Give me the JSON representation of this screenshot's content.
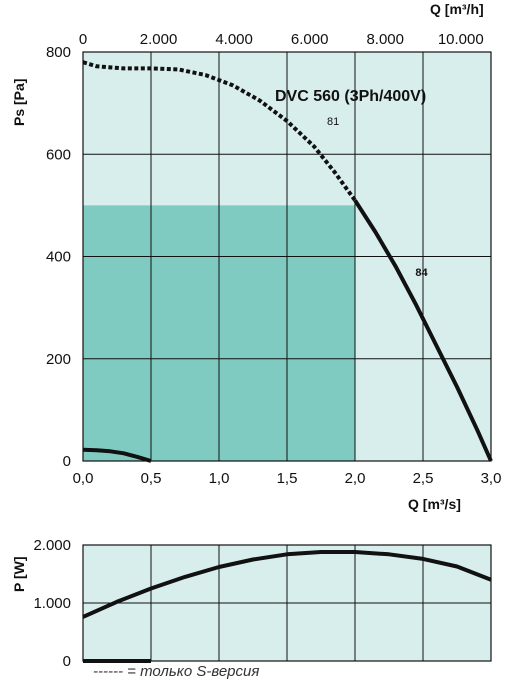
{
  "chart_data": [
    {
      "type": "line",
      "title": "DVC 560 (3Ph/400V)",
      "xlabel": "Q [m³/s]",
      "ylabel": "Ps [Pa]",
      "x2label": "Q [m³/h]",
      "xlim": [
        0,
        3
      ],
      "ylim": [
        0,
        800
      ],
      "x2lim": [
        0,
        10800
      ],
      "grid": true,
      "x_ticks": [
        0,
        0.5,
        1.0,
        1.5,
        2.0,
        2.5,
        3.0
      ],
      "x_tick_labels": [
        "0,0",
        "0,5",
        "1,0",
        "1,5",
        "2,0",
        "2,5",
        "3,0"
      ],
      "y_ticks": [
        0,
        200,
        400,
        600,
        800
      ],
      "y_tick_labels": [
        "0",
        "200",
        "400",
        "600",
        "800"
      ],
      "x2_ticks": [
        0,
        2000,
        4000,
        6000,
        8000,
        10000
      ],
      "x2_tick_labels": [
        "0",
        "2.000",
        "4.000",
        "6.000",
        "8.000",
        "10.000"
      ],
      "colors": {
        "background": "#d8eeec",
        "region": "#7fcbc2",
        "line": "#111111",
        "grid": "#111111"
      },
      "region": {
        "x": [
          0,
          2.0
        ],
        "y": [
          0,
          500
        ]
      },
      "series": [
        {
          "name": "",
          "style": "dashed",
          "x": [
            0,
            0.1,
            0.3,
            0.5,
            0.7,
            0.9,
            1.1,
            1.3,
            1.5,
            1.7,
            1.85,
            2.0
          ],
          "y": [
            780,
            772,
            768,
            768,
            766,
            755,
            735,
            705,
            665,
            615,
            565,
            510
          ]
        },
        {
          "name": "",
          "style": "solid",
          "x": [
            2.0,
            2.15,
            2.3,
            2.45,
            2.6,
            2.75,
            2.9,
            3.0
          ],
          "y": [
            510,
            448,
            380,
            305,
            225,
            145,
            60,
            0
          ]
        },
        {
          "name": "",
          "style": "solid",
          "x": [
            0,
            0.1,
            0.2,
            0.3,
            0.4,
            0.5
          ],
          "y": [
            22,
            21,
            19,
            15,
            8,
            0
          ]
        }
      ],
      "annotations": [
        {
          "text": "81",
          "x": 1.75,
          "y": 665
        },
        {
          "text": "84",
          "x": 2.4,
          "y": 370
        }
      ]
    },
    {
      "type": "line",
      "title": "",
      "xlabel": "",
      "ylabel": "P [W]",
      "xlim": [
        0,
        3
      ],
      "ylim": [
        0,
        2000
      ],
      "grid": true,
      "y_ticks": [
        0,
        1000,
        2000
      ],
      "y_tick_labels": [
        "0",
        "1.000",
        "2.000"
      ],
      "colors": {
        "background": "#d8eeec",
        "line": "#111111"
      },
      "series": [
        {
          "name": "",
          "style": "solid",
          "x": [
            0,
            0.25,
            0.5,
            0.75,
            1.0,
            1.25,
            1.5,
            1.75,
            2.0,
            2.25,
            2.5,
            2.75,
            3.0
          ],
          "y": [
            760,
            1020,
            1250,
            1450,
            1620,
            1750,
            1840,
            1880,
            1880,
            1840,
            1760,
            1630,
            1400
          ]
        },
        {
          "name": "",
          "style": "solid",
          "x": [
            0,
            0.5
          ],
          "y": [
            0,
            0
          ]
        }
      ]
    }
  ],
  "footnote": "------ = только S-версия"
}
